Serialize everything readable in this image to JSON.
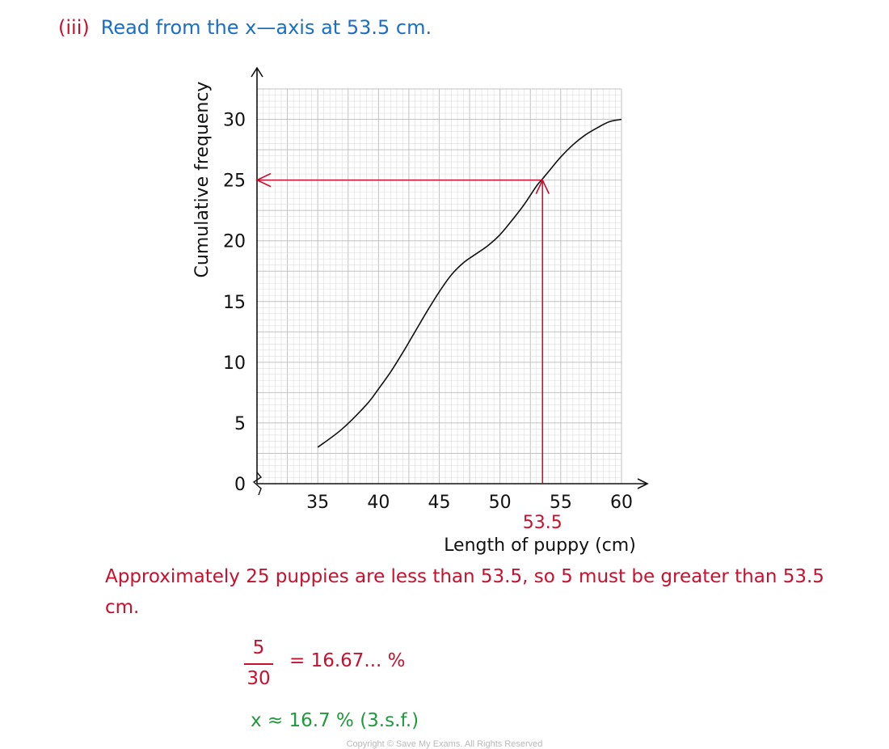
{
  "heading": {
    "part": "(iii)",
    "text": "Read from the x—axis at 53.5 cm."
  },
  "chart_data": {
    "type": "line",
    "xlabel": "Length of puppy (cm)",
    "ylabel": "Cumulative frequency",
    "xlim": [
      30,
      60
    ],
    "ylim": [
      0,
      30
    ],
    "x_ticks": [
      35,
      40,
      45,
      50,
      55,
      60
    ],
    "y_ticks": [
      0,
      5,
      10,
      15,
      20,
      25,
      30
    ],
    "grid": true,
    "series": [
      {
        "x": [
          35,
          37,
          39,
          40,
          41,
          42,
          43,
          44,
          45,
          46,
          47,
          48,
          49,
          50,
          51,
          52,
          53,
          53.5,
          54,
          55,
          56,
          57,
          58,
          59,
          60
        ],
        "y": [
          3,
          4.5,
          6.5,
          7.8,
          9.2,
          10.8,
          12.5,
          14.2,
          15.8,
          17.2,
          18.2,
          18.9,
          19.6,
          20.5,
          21.7,
          23,
          24.5,
          25.1,
          25.7,
          26.9,
          27.9,
          28.7,
          29.3,
          29.8,
          30
        ]
      }
    ],
    "annotation": {
      "x": 53.5,
      "y": 25,
      "label": "53.5",
      "color": "#c8102e"
    },
    "colors": {
      "curve": "#111111",
      "annotation": "#c8102e",
      "grid_minor": "#dcdcdc",
      "grid_major": "#c2c2c2"
    }
  },
  "explanation": "Approximately 25 puppies are less than 53.5, so 5 must be greater than 53.5 cm.",
  "fraction": {
    "numerator": "5",
    "denominator": "30",
    "result": "= 16.67... %"
  },
  "answer": "x ≈  16.7 % (3.s.f.)",
  "copyright": "Copyright © Save My Exams. All Rights Reserved",
  "colors": {
    "red": "#c8102e",
    "blue": "#1a6fc4",
    "green": "#1e9a3c"
  }
}
